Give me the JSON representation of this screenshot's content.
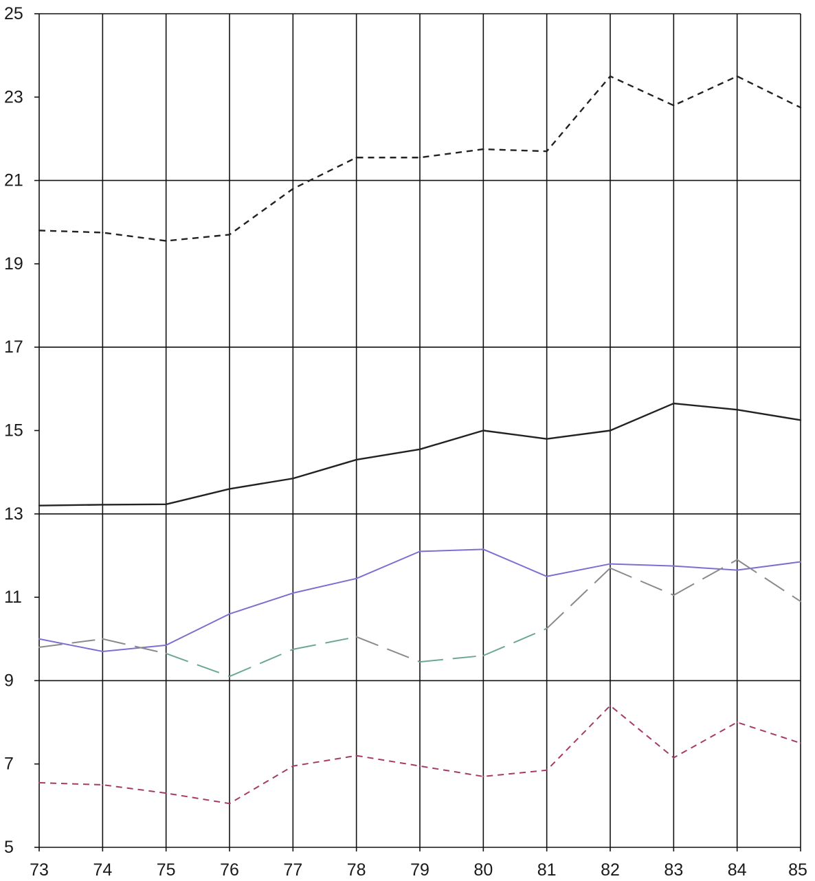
{
  "chart_data": {
    "type": "line",
    "title": "",
    "xlabel": "",
    "ylabel": "",
    "x": [
      73,
      74,
      75,
      76,
      77,
      78,
      79,
      80,
      81,
      82,
      83,
      84,
      85
    ],
    "x_tick_labels": [
      "73",
      "74",
      "75",
      "76",
      "77",
      "78",
      "79",
      "80",
      "81",
      "82",
      "83",
      "84",
      "85"
    ],
    "xlim": [
      73,
      85
    ],
    "ylim": [
      5,
      25
    ],
    "y_ticks": [
      5,
      7,
      9,
      11,
      13,
      15,
      17,
      19,
      21,
      23,
      25
    ],
    "y_tick_labels": [
      "5",
      "7",
      "9",
      "11",
      "13",
      "15",
      "17",
      "19",
      "21",
      "23",
      "25"
    ],
    "major_y_lines": [
      9,
      13,
      17,
      21
    ],
    "grid": true,
    "legend": "none",
    "series": [
      {
        "values": [
          19.8,
          19.75,
          19.55,
          19.7,
          20.8,
          21.55,
          21.55,
          21.75,
          21.7,
          23.5,
          22.8,
          23.5,
          22.75
        ],
        "color": "#222222",
        "dash": "short-dash"
      },
      {
        "values": [
          13.2,
          13.22,
          13.23,
          13.6,
          13.85,
          14.3,
          14.55,
          15.0,
          14.8,
          15.0,
          15.65,
          15.5,
          15.25
        ],
        "color": "#222222",
        "dash": "solid"
      },
      {
        "values": [
          10.0,
          9.7,
          9.85,
          10.6,
          11.1,
          11.45,
          12.1,
          12.15,
          11.5,
          11.8,
          11.75,
          11.65,
          11.85
        ],
        "color": "#7b6fd0",
        "dash": "solid"
      },
      {
        "values": [
          9.8,
          10.0,
          9.65,
          9.1,
          9.75,
          10.05,
          9.45,
          9.6,
          10.25,
          11.7,
          11.05,
          11.9,
          10.9
        ],
        "color": "#8a8a8a",
        "dash": "long-dash",
        "segment_colors": [
          "#8a8a8a",
          "#8a8a8a",
          "#6aa891",
          "#6aa891",
          "#6aa891",
          "#8a8a8a",
          "#6aa891",
          "#6aa891",
          "#8a8a8a",
          "#8a8a8a",
          "#8a8a8a",
          "#8a8a8a"
        ]
      },
      {
        "values": [
          6.55,
          6.5,
          6.3,
          6.05,
          6.95,
          7.2,
          6.95,
          6.7,
          6.85,
          8.4,
          7.15,
          8.0,
          7.5
        ],
        "color": "#a53a68",
        "dash": "short-dash"
      }
    ]
  }
}
